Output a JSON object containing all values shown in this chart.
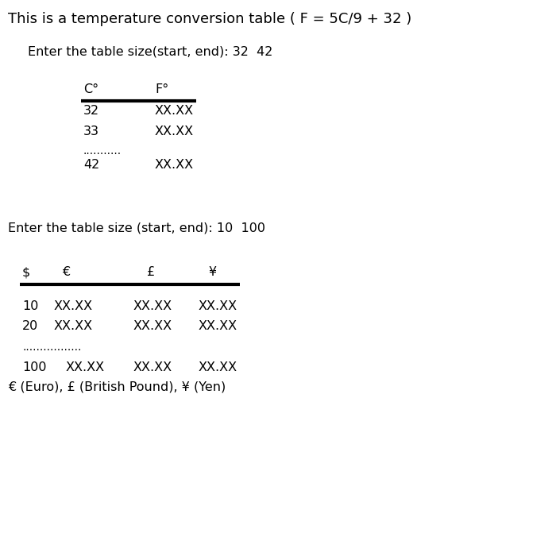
{
  "bg_color": "#ffffff",
  "title_line": "This is a temperature conversion table ( F = 5C/9 + 32 )",
  "section1_prompt": "Enter the table size(start, end): 32  42",
  "table1_headers": [
    "C°",
    "F°"
  ],
  "table1_rows": [
    [
      "32",
      "XX.XX"
    ],
    [
      "33",
      "XX.XX"
    ]
  ],
  "table1_dots": "...........",
  "table1_last": [
    "42",
    "XX.XX"
  ],
  "section2_prompt": "Enter the table size (start, end): 10  100",
  "table2_headers": [
    "$",
    "€",
    "£",
    "¥"
  ],
  "table2_rows": [
    [
      "10",
      "XX.XX",
      "XX.XX",
      "XX.XX"
    ],
    [
      "20",
      "XX.XX",
      "XX.XX",
      "XX.XX"
    ]
  ],
  "table2_dots": ".................",
  "table2_last": [
    "100",
    "XX.XX",
    "XX.XX",
    "XX.XX"
  ],
  "table2_footer": "€ (Euro), £ (British Pound), ¥ (Yen)",
  "font_size_title": 13,
  "font_size_prompt": 11.5,
  "font_size_header": 11.5,
  "font_size_data": 11.5,
  "font_size_dots": 10,
  "font_size_footer": 11.5,
  "line1_lw": 3.0
}
